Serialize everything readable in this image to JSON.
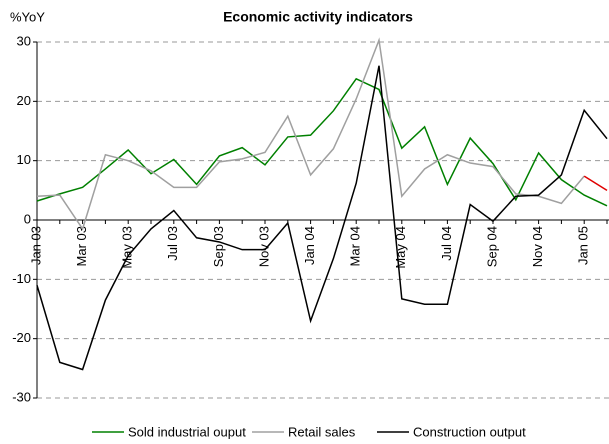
{
  "chart_data": {
    "type": "line",
    "title": "Economic activity indicators",
    "y_label": "%YoY",
    "categories": [
      "Jan 03",
      null,
      "Mar 03",
      null,
      "May 03",
      null,
      "Jul 03",
      null,
      "Sep 03",
      null,
      "Nov 03",
      null,
      "Jan 04",
      null,
      "Mar 04",
      null,
      "May 04",
      null,
      "Jul 04",
      null,
      "Sep 04",
      null,
      "Nov 04",
      null,
      "Jan 05",
      null
    ],
    "series": [
      {
        "name": "Sold industrial ouput",
        "color": "#008000",
        "values": [
          3.2,
          4.4,
          5.5,
          8.6,
          11.8,
          7.8,
          10.2,
          6,
          10.8,
          12.2,
          9.3,
          14,
          14.3,
          18.4,
          23.8,
          22,
          12.1,
          15.7,
          6,
          13.8,
          9.5,
          3.4,
          11.3,
          6.8,
          4.2,
          2.4
        ]
      },
      {
        "name": "Retail sales",
        "color": "#a0a0a0",
        "last_segment_color": "#e00000",
        "values": [
          4,
          4.2,
          -1.5,
          11,
          10,
          8.3,
          5.5,
          5.5,
          9.8,
          10.3,
          11.4,
          17.5,
          7.6,
          12,
          20.4,
          30.3,
          4,
          8.6,
          11,
          9.6,
          9,
          4.4,
          4,
          2.8,
          7.4,
          5
        ]
      },
      {
        "name": "Construction output",
        "color": "#000000",
        "values": [
          -11,
          -24,
          -25.2,
          -13.5,
          -6,
          -1.5,
          1.6,
          -3,
          -3.7,
          -5,
          -5,
          -0.5,
          -17,
          -6.5,
          6.2,
          26,
          -13.3,
          -14.2,
          -14.2,
          2.6,
          -0.2,
          4,
          4.2,
          7.6,
          18.5,
          13.7
        ]
      }
    ],
    "ylim": [
      -30,
      30
    ],
    "yticks": [
      -30,
      -20,
      -10,
      0,
      10,
      20,
      30
    ],
    "grid": true,
    "legend": "bottom"
  }
}
